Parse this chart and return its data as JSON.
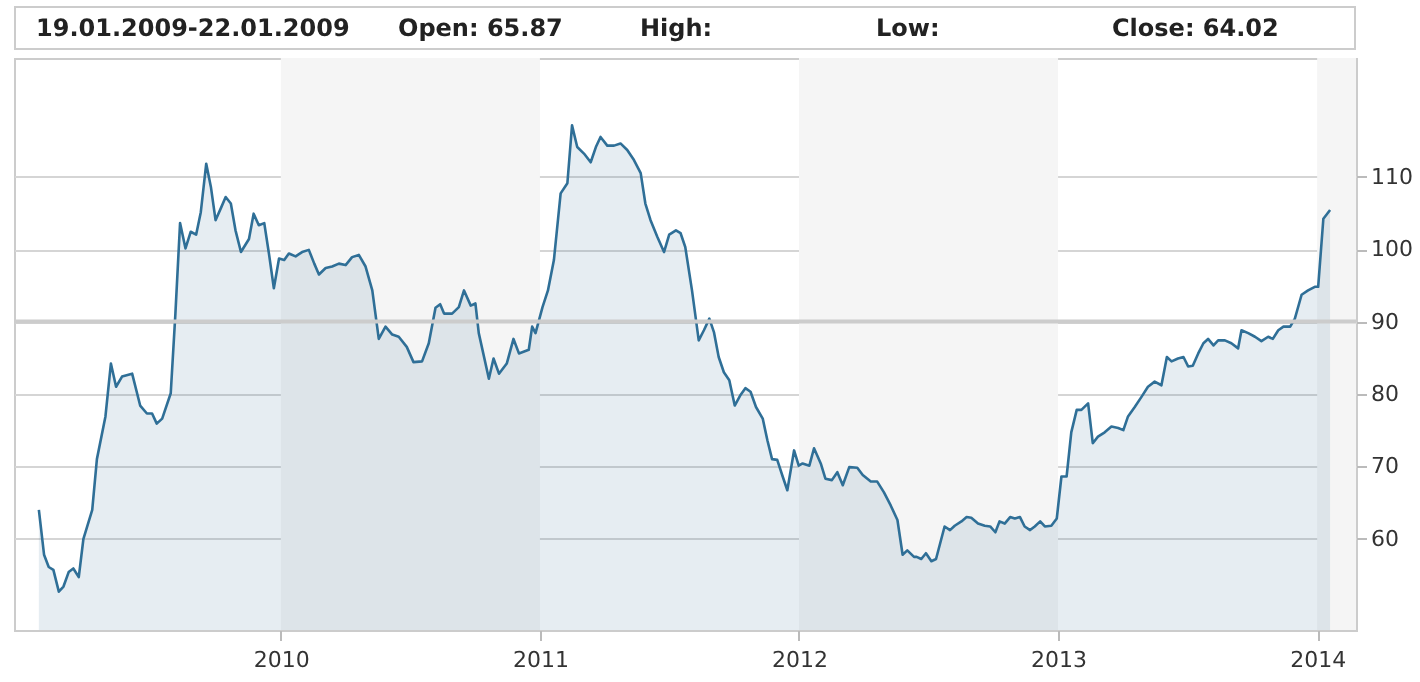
{
  "chart_data": {
    "type": "area",
    "annotations": [
      "19.01.2009-22.01.2009",
      "Open: 65.87",
      "High:",
      "Low:",
      "Close: 64.02"
    ],
    "series": [
      {
        "color": "#2f6f97",
        "x": [
          2009.066,
          2009.086,
          2009.104,
          2009.122,
          2009.143,
          2009.161,
          2009.181,
          2009.199,
          2009.22,
          2009.238,
          2009.272,
          2009.29,
          2009.323,
          2009.344,
          2009.364,
          2009.387,
          2009.426,
          2009.457,
          2009.483,
          2009.503,
          2009.521,
          2009.542,
          2009.575,
          2009.593,
          2009.611,
          2009.632,
          2009.652,
          2009.673,
          2009.691,
          2009.712,
          2009.73,
          2009.748,
          2009.769,
          2009.787,
          2009.807,
          2009.825,
          2009.846,
          2009.877,
          2009.895,
          2009.915,
          2009.936,
          2009.954,
          2009.973,
          2009.993,
          2010.013,
          2010.031,
          2010.057,
          2010.082,
          2010.108,
          2010.129,
          2010.147,
          2010.173,
          2010.198,
          2010.224,
          2010.25,
          2010.275,
          2010.301,
          2010.327,
          2010.353,
          2010.378,
          2010.404,
          2010.43,
          2010.455,
          2010.486,
          2010.512,
          2010.545,
          2010.571,
          2010.597,
          2010.615,
          2010.63,
          2010.661,
          2010.687,
          2010.707,
          2010.733,
          2010.751,
          2010.764,
          2010.803,
          2010.821,
          2010.842,
          2010.872,
          2010.898,
          2010.919,
          2010.957,
          2010.97,
          2010.983,
          2011.01,
          2011.031,
          2011.054,
          2011.08,
          2011.106,
          2011.124,
          2011.144,
          2011.17,
          2011.196,
          2011.216,
          2011.234,
          2011.26,
          2011.286,
          2011.311,
          2011.337,
          2011.363,
          2011.389,
          2011.407,
          2011.427,
          2011.453,
          2011.479,
          2011.499,
          2011.525,
          2011.543,
          2011.561,
          2011.587,
          2011.613,
          2011.633,
          2011.654,
          2011.672,
          2011.69,
          2011.71,
          2011.731,
          2011.752,
          2011.775,
          2011.793,
          2011.813,
          2011.834,
          2011.86,
          2011.878,
          2011.896,
          2011.916,
          2011.937,
          2011.955,
          2011.981,
          2011.999,
          2012.014,
          2012.04,
          2012.058,
          2012.084,
          2012.102,
          2012.127,
          2012.148,
          2012.169,
          2012.194,
          2012.225,
          2012.246,
          2012.277,
          2012.302,
          2012.328,
          2012.354,
          2012.38,
          2012.4,
          2012.418,
          2012.444,
          2012.454,
          2012.472,
          2012.49,
          2012.511,
          2012.529,
          2012.562,
          2012.583,
          2012.601,
          2012.627,
          2012.647,
          2012.665,
          2012.691,
          2012.717,
          2012.738,
          2012.758,
          2012.774,
          2012.794,
          2012.815,
          2012.833,
          2012.853,
          2012.871,
          2012.892,
          2012.91,
          2012.931,
          2012.949,
          2012.974,
          2012.995,
          2013.013,
          2013.033,
          2013.051,
          2013.072,
          2013.09,
          2013.116,
          2013.134,
          2013.154,
          2013.18,
          2013.206,
          2013.232,
          2013.252,
          2013.27,
          2013.296,
          2013.322,
          2013.347,
          2013.373,
          2013.399,
          2013.42,
          2013.438,
          2013.463,
          2013.484,
          2013.502,
          2013.52,
          2013.541,
          2013.561,
          2013.579,
          2013.6,
          2013.618,
          2013.644,
          2013.669,
          2013.695,
          2013.708,
          2013.734,
          2013.76,
          2013.785,
          2013.811,
          2013.829,
          2013.85,
          2013.87,
          2013.896,
          2013.914,
          2013.94,
          2013.965,
          2013.991,
          2014.004,
          2014.024,
          2014.05
        ],
        "values": [
          64.0,
          57.8,
          56.1,
          55.7,
          52.7,
          53.4,
          55.4,
          55.9,
          54.7,
          60.0,
          64.0,
          71.0,
          76.9,
          84.2,
          81.0,
          82.4,
          82.8,
          78.4,
          77.3,
          77.3,
          75.9,
          76.6,
          80.1,
          91.1,
          103.6,
          100.1,
          102.4,
          102.0,
          105.1,
          111.8,
          108.6,
          104.0,
          105.7,
          107.2,
          106.3,
          102.6,
          99.6,
          101.4,
          104.9,
          103.3,
          103.6,
          99.4,
          94.6,
          98.7,
          98.5,
          99.4,
          99.0,
          99.6,
          99.9,
          98.0,
          96.5,
          97.4,
          97.6,
          98.0,
          97.8,
          98.9,
          99.2,
          97.6,
          94.3,
          87.6,
          89.3,
          88.2,
          87.9,
          86.5,
          84.4,
          84.5,
          87.0,
          91.9,
          92.4,
          91.1,
          91.1,
          92.0,
          94.3,
          92.2,
          92.5,
          88.4,
          82.1,
          84.9,
          82.8,
          84.2,
          87.6,
          85.6,
          86.1,
          89.3,
          88.4,
          92.0,
          94.3,
          98.5,
          107.7,
          109.1,
          117.1,
          114.1,
          113.2,
          112.0,
          114.1,
          115.5,
          114.3,
          114.3,
          114.6,
          113.7,
          112.3,
          110.5,
          106.3,
          104.0,
          101.7,
          99.6,
          102.0,
          102.6,
          102.2,
          100.3,
          94.3,
          87.4,
          88.8,
          90.4,
          88.5,
          85.1,
          83.0,
          81.9,
          78.4,
          79.9,
          80.8,
          80.3,
          78.2,
          76.6,
          73.6,
          71.0,
          70.9,
          68.6,
          66.7,
          72.2,
          70.1,
          70.4,
          70.1,
          72.5,
          70.4,
          68.3,
          68.1,
          69.2,
          67.4,
          69.9,
          69.8,
          68.8,
          67.9,
          67.9,
          66.4,
          64.6,
          62.6,
          57.8,
          58.4,
          57.5,
          57.5,
          57.2,
          58.0,
          56.9,
          57.2,
          61.7,
          61.2,
          61.8,
          62.4,
          63.0,
          62.9,
          62.1,
          61.8,
          61.7,
          60.9,
          62.4,
          62.1,
          63.0,
          62.8,
          63.0,
          61.7,
          61.2,
          61.7,
          62.4,
          61.7,
          61.8,
          62.8,
          68.6,
          68.6,
          74.7,
          77.8,
          77.8,
          78.7,
          73.2,
          74.1,
          74.7,
          75.5,
          75.3,
          75.0,
          76.9,
          78.2,
          79.6,
          81.0,
          81.7,
          81.2,
          85.1,
          84.5,
          84.9,
          85.1,
          83.8,
          83.9,
          85.6,
          87.0,
          87.6,
          86.7,
          87.4,
          87.4,
          87.0,
          86.3,
          88.8,
          88.4,
          87.9,
          87.3,
          87.9,
          87.6,
          88.8,
          89.3,
          89.3,
          90.4,
          93.7,
          94.3,
          94.8,
          94.8,
          104.2,
          105.4
        ]
      }
    ],
    "xlim": [
      2008.97,
      2014.15
    ],
    "xticks": [
      2010,
      2011,
      2012,
      2013,
      2014
    ],
    "ylim": [
      47.4,
      126.4
    ],
    "yticks": [
      60,
      70,
      80,
      90,
      100,
      110
    ],
    "grid": "y",
    "bands": [
      {
        "axis": "x",
        "from": 2010,
        "to": 2011,
        "color": "#f5f5f5"
      },
      {
        "axis": "x",
        "from": 2012,
        "to": 2013,
        "color": "#f5f5f5"
      },
      {
        "axis": "x",
        "from": 2014,
        "to": 2014.15,
        "color": "#f5f5f5"
      }
    ],
    "ref_lines": [
      {
        "axis": "y",
        "value": 90,
        "color": "#cccccc"
      }
    ]
  }
}
